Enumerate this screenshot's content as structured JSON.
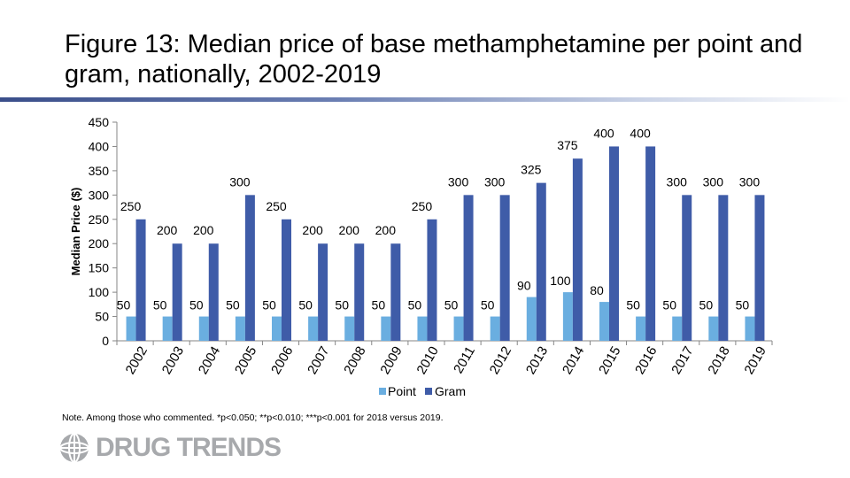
{
  "title": "Figure 13: Median price of base methamphetamine per point and gram, nationally, 2002-2019",
  "note": "Note. Among those who commented. *p<0.050; **p<0.010; ***p<0.001 for 2018 versus 2019.",
  "logo": {
    "text": "DRUG TRENDS",
    "icon": "globe-icon"
  },
  "colors": {
    "point": "#6aaee0",
    "gram": "#3f5ca8",
    "axis": "#868686",
    "rule": "#3a4e8a"
  },
  "chart_data": {
    "type": "bar",
    "title": "Figure 13: Median price of base methamphetamine per point and gram, nationally, 2002-2019",
    "xlabel": "",
    "ylabel": "Median Price ($)",
    "ylim": [
      0,
      450
    ],
    "yticks": [
      0,
      50,
      100,
      150,
      200,
      250,
      300,
      350,
      400,
      450
    ],
    "grid": false,
    "legend": "bottom",
    "categories": [
      "2002",
      "2003",
      "2004",
      "2005",
      "2006",
      "2007",
      "2008",
      "2009",
      "2010",
      "2011",
      "2012",
      "2013",
      "2014",
      "2015",
      "2016",
      "2017",
      "2018",
      "2019"
    ],
    "series": [
      {
        "name": "Point",
        "color": "#6aaee0",
        "values": [
          50,
          50,
          50,
          50,
          50,
          50,
          50,
          50,
          50,
          50,
          50,
          90,
          100,
          80,
          50,
          50,
          50,
          50
        ],
        "labels": [
          "50",
          "50",
          "50",
          "50",
          "50",
          "50",
          "50",
          "50",
          "50",
          "50",
          "50",
          "90",
          "100",
          "80",
          "50",
          "50",
          "50",
          "50"
        ]
      },
      {
        "name": "Gram",
        "color": "#3f5ca8",
        "values": [
          250,
          200,
          200,
          300,
          250,
          200,
          200,
          200,
          250,
          300,
          300,
          325,
          375,
          400,
          400,
          300,
          300,
          300
        ],
        "labels": [
          "250",
          "200",
          "200",
          "300",
          "250",
          "200",
          "200",
          "200",
          "250",
          "300",
          "300",
          "325",
          "375",
          "400",
          "400",
          "300",
          "300",
          "300"
        ]
      }
    ]
  }
}
